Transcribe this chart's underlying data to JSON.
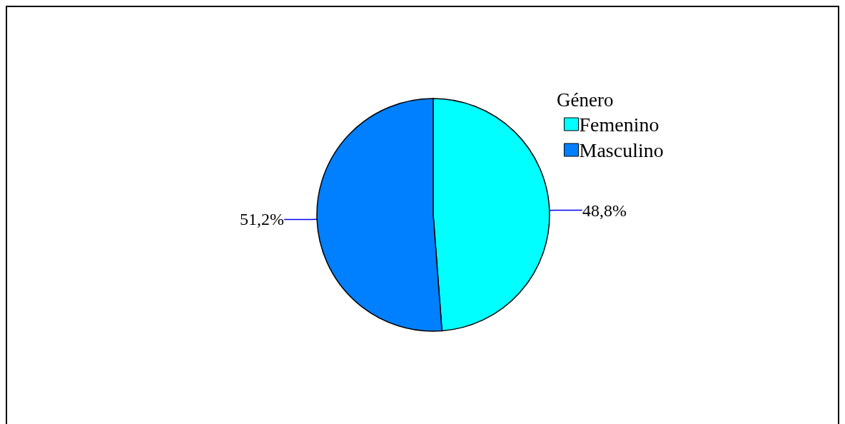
{
  "chart_data": {
    "type": "pie",
    "categories": [
      "Femenino",
      "Masculino"
    ],
    "values": [
      48.8,
      51.2
    ],
    "colors": [
      "#00ffff",
      "#0080ff"
    ],
    "value_labels": [
      "48,8%",
      "51,2%"
    ],
    "legend_title": "Género",
    "legend": "top right"
  }
}
